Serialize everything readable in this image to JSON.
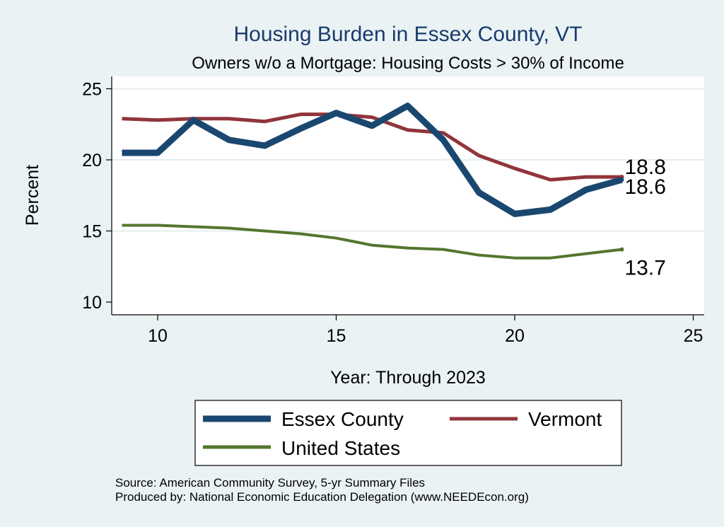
{
  "chart_data": {
    "type": "line",
    "title": "Housing Burden in Essex County, VT",
    "subtitle": "Owners w/o a Mortgage: Housing Costs > 30% of Income",
    "xlabel": "Year: Through 2023",
    "ylabel": "Percent",
    "xlim": [
      9,
      25
    ],
    "ylim": [
      10,
      25
    ],
    "xticks": [
      10,
      15,
      20,
      25
    ],
    "yticks": [
      10,
      15,
      20,
      25
    ],
    "grid": true,
    "legend_position": "bottom",
    "x": [
      9,
      10,
      11,
      12,
      13,
      14,
      15,
      16,
      17,
      18,
      19,
      20,
      21,
      22,
      23
    ],
    "series": [
      {
        "name": "Essex County",
        "color": "#1a476f",
        "values": [
          20.5,
          20.5,
          22.8,
          21.4,
          21.0,
          22.2,
          23.3,
          22.4,
          23.8,
          21.4,
          17.7,
          16.2,
          16.5,
          17.9,
          18.6
        ],
        "end_label": "18.6"
      },
      {
        "name": "Vermont",
        "color": "#90353b",
        "values": [
          22.9,
          22.8,
          22.9,
          22.9,
          22.7,
          23.2,
          23.2,
          23.0,
          22.1,
          21.9,
          20.3,
          19.4,
          18.6,
          18.8,
          18.8
        ],
        "end_label": "18.8"
      },
      {
        "name": "United States",
        "color": "#55752f",
        "values": [
          15.4,
          15.4,
          15.3,
          15.2,
          15.0,
          14.8,
          14.5,
          14.0,
          13.8,
          13.7,
          13.3,
          13.1,
          13.1,
          13.4,
          13.7
        ],
        "end_label": "13.7"
      }
    ],
    "notes": [
      "Source: American Community Survey, 5-yr Summary Files",
      "Produced by: National Economic Education Delegation (www.NEEDEcon.org)"
    ]
  }
}
